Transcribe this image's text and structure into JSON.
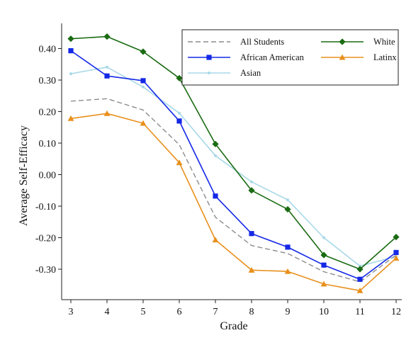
{
  "chart_data": {
    "type": "line",
    "xlabel": "Grade",
    "ylabel": "Average Self-Efficacy",
    "x": [
      3,
      4,
      5,
      6,
      7,
      8,
      9,
      10,
      11,
      12
    ],
    "x_ticks": [
      "3",
      "4",
      "5",
      "6",
      "7",
      "8",
      "9",
      "10",
      "11",
      "12"
    ],
    "xlim": [
      3,
      12
    ],
    "ylim": [
      -0.39,
      0.47
    ],
    "y_ticks": [
      0.4,
      0.3,
      0.2,
      0.1,
      0.0,
      -0.1,
      -0.2,
      -0.3
    ],
    "y_tick_labels": [
      "0.40",
      "0.30",
      "0.20",
      "0.10",
      "0.00",
      "-0.10",
      "-0.20",
      "-0.30"
    ],
    "grid": false,
    "legend_position": "top-right",
    "series": [
      {
        "name": "All Students",
        "color": "#8c8c8c",
        "marker": "none",
        "dash": "dashed",
        "values": [
          0.233,
          0.241,
          0.205,
          0.095,
          -0.135,
          -0.225,
          -0.25,
          -0.308,
          -0.34,
          -0.255
        ]
      },
      {
        "name": "White",
        "color": "#1a6b12",
        "marker": "diamond",
        "dash": "solid",
        "values": [
          0.431,
          0.438,
          0.39,
          0.306,
          0.097,
          -0.05,
          -0.11,
          -0.255,
          -0.3,
          -0.198
        ]
      },
      {
        "name": "African American",
        "color": "#1428e6",
        "marker": "square",
        "dash": "solid",
        "values": [
          0.393,
          0.313,
          0.298,
          0.17,
          -0.068,
          -0.187,
          -0.23,
          -0.287,
          -0.332,
          -0.247
        ]
      },
      {
        "name": "Latinx",
        "color": "#e8901c",
        "marker": "triangle",
        "dash": "solid",
        "values": [
          0.178,
          0.194,
          0.163,
          0.038,
          -0.207,
          -0.303,
          -0.307,
          -0.347,
          -0.368,
          -0.265
        ]
      },
      {
        "name": "Asian",
        "color": "#a8d8e8",
        "marker": "dot",
        "dash": "solid",
        "values": [
          0.32,
          0.341,
          0.278,
          0.195,
          0.06,
          -0.023,
          -0.08,
          -0.2,
          -0.29,
          -0.26
        ]
      }
    ]
  }
}
